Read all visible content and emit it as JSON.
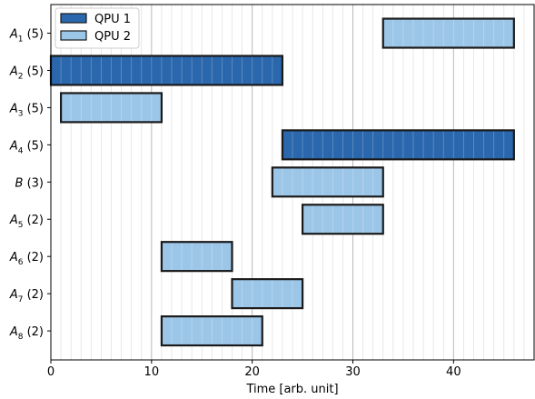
{
  "chart_data": {
    "type": "bar",
    "orientation": "horizontal",
    "xlabel": "Time [arb. unit]",
    "ylabel": "",
    "xlim": [
      0,
      48
    ],
    "xticks": [
      0,
      10,
      20,
      30,
      40
    ],
    "minor_grid_step": 1,
    "grid": true,
    "legend_position": "top-left",
    "categories": [
      {
        "name": "A",
        "sub": "1",
        "count": "(5)"
      },
      {
        "name": "A",
        "sub": "2",
        "count": "(5)"
      },
      {
        "name": "A",
        "sub": "3",
        "count": "(5)"
      },
      {
        "name": "A",
        "sub": "4",
        "count": "(5)"
      },
      {
        "name": "B",
        "sub": "",
        "count": "(3)"
      },
      {
        "name": "A",
        "sub": "5",
        "count": "(2)"
      },
      {
        "name": "A",
        "sub": "6",
        "count": "(2)"
      },
      {
        "name": "A",
        "sub": "7",
        "count": "(2)"
      },
      {
        "name": "A",
        "sub": "8",
        "count": "(2)"
      }
    ],
    "series": [
      {
        "name": "QPU 1",
        "color": "#2b67ad"
      },
      {
        "name": "QPU 2",
        "color": "#9cc6e8"
      }
    ],
    "bars": [
      {
        "row": 0,
        "start": 33,
        "end": 46,
        "series": 1
      },
      {
        "row": 1,
        "start": 0,
        "end": 23,
        "series": 0
      },
      {
        "row": 2,
        "start": 1,
        "end": 11,
        "series": 1
      },
      {
        "row": 3,
        "start": 23,
        "end": 46,
        "series": 0
      },
      {
        "row": 4,
        "start": 22,
        "end": 33,
        "series": 1
      },
      {
        "row": 5,
        "start": 25,
        "end": 33,
        "series": 1
      },
      {
        "row": 6,
        "start": 11,
        "end": 18,
        "series": 1
      },
      {
        "row": 7,
        "start": 18,
        "end": 25,
        "series": 1
      },
      {
        "row": 8,
        "start": 11,
        "end": 21,
        "series": 1
      }
    ]
  }
}
